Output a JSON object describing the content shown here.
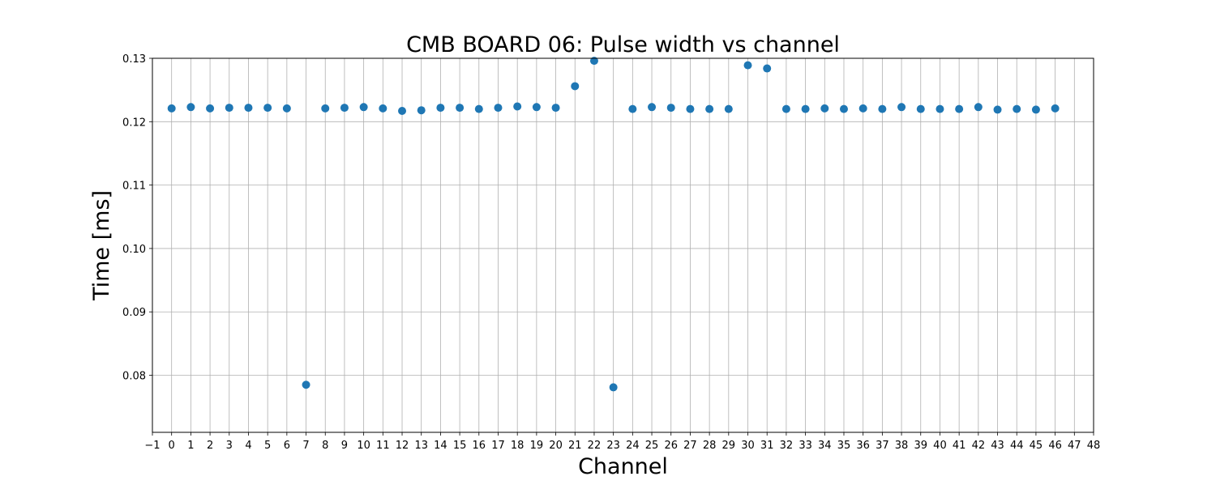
{
  "chart_data": {
    "type": "scatter",
    "title": "CMB BOARD 06: Pulse width vs channel",
    "xlabel": "Channel",
    "ylabel": "Time [ms]",
    "xlim": [
      -1,
      48
    ],
    "ylim": [
      0.071,
      0.13
    ],
    "grid": true,
    "color": "#1f77b4",
    "x_ticks": [
      -1,
      0,
      1,
      2,
      3,
      4,
      5,
      6,
      7,
      8,
      9,
      10,
      11,
      12,
      13,
      14,
      15,
      16,
      17,
      18,
      19,
      20,
      21,
      22,
      23,
      24,
      25,
      26,
      27,
      28,
      29,
      30,
      31,
      32,
      33,
      34,
      35,
      36,
      37,
      38,
      39,
      40,
      41,
      42,
      43,
      44,
      45,
      46,
      47,
      48
    ],
    "x_tick_labels": [
      "−1",
      "0",
      "1",
      "2",
      "3",
      "4",
      "5",
      "6",
      "7",
      "8",
      "9",
      "10",
      "11",
      "12",
      "13",
      "14",
      "15",
      "16",
      "17",
      "18",
      "19",
      "20",
      "21",
      "22",
      "23",
      "24",
      "25",
      "26",
      "27",
      "28",
      "29",
      "30",
      "31",
      "32",
      "33",
      "34",
      "35",
      "36",
      "37",
      "38",
      "39",
      "40",
      "41",
      "42",
      "43",
      "44",
      "45",
      "46",
      "47",
      "48"
    ],
    "y_ticks": [
      0.08,
      0.09,
      0.1,
      0.11,
      0.12,
      0.13
    ],
    "y_tick_labels": [
      "0.08",
      "0.09",
      "0.10",
      "0.11",
      "0.12",
      "0.13"
    ],
    "x": [
      0,
      1,
      2,
      3,
      4,
      5,
      6,
      7,
      8,
      9,
      10,
      11,
      12,
      13,
      14,
      15,
      16,
      17,
      18,
      19,
      20,
      21,
      22,
      23,
      24,
      25,
      26,
      27,
      28,
      29,
      30,
      31,
      32,
      33,
      34,
      35,
      36,
      37,
      38,
      39,
      40,
      41,
      42,
      43,
      44,
      45,
      46
    ],
    "y": [
      0.1221,
      0.1223,
      0.1221,
      0.1222,
      0.1222,
      0.1222,
      0.1221,
      0.0785,
      0.1221,
      0.1222,
      0.1223,
      0.1221,
      0.1217,
      0.1218,
      0.1222,
      0.1222,
      0.122,
      0.1222,
      0.1224,
      0.1223,
      0.1222,
      0.1256,
      0.1296,
      0.0781,
      0.122,
      0.1223,
      0.1222,
      0.122,
      0.122,
      0.122,
      0.1289,
      0.1284,
      0.122,
      0.122,
      0.1221,
      0.122,
      0.1221,
      0.122,
      0.1223,
      0.122,
      0.122,
      0.122,
      0.1223,
      0.1219,
      0.122,
      0.1219,
      0.1221
    ]
  }
}
